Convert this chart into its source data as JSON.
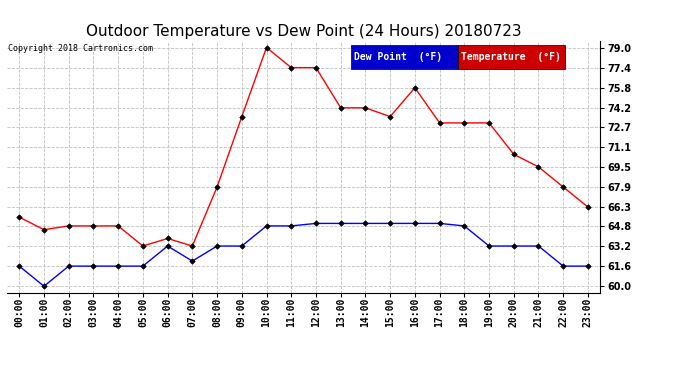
{
  "title": "Outdoor Temperature vs Dew Point (24 Hours) 20180723",
  "copyright": "Copyright 2018 Cartronics.com",
  "hours": [
    "00:00",
    "01:00",
    "02:00",
    "03:00",
    "04:00",
    "05:00",
    "06:00",
    "07:00",
    "08:00",
    "09:00",
    "10:00",
    "11:00",
    "12:00",
    "13:00",
    "14:00",
    "15:00",
    "16:00",
    "17:00",
    "18:00",
    "19:00",
    "20:00",
    "21:00",
    "22:00",
    "23:00"
  ],
  "temperature": [
    65.5,
    64.5,
    64.8,
    64.8,
    64.8,
    63.2,
    63.8,
    63.2,
    67.9,
    73.5,
    79.0,
    77.4,
    77.4,
    74.2,
    74.2,
    73.5,
    75.8,
    73.0,
    73.0,
    73.0,
    70.5,
    69.5,
    67.9,
    66.3
  ],
  "dew_point": [
    61.6,
    60.0,
    61.6,
    61.6,
    61.6,
    61.6,
    63.2,
    62.0,
    63.2,
    63.2,
    64.8,
    64.8,
    65.0,
    65.0,
    65.0,
    65.0,
    65.0,
    65.0,
    64.8,
    63.2,
    63.2,
    63.2,
    61.6,
    61.6
  ],
  "ylim_min": 60.0,
  "ylim_max": 79.0,
  "yticks": [
    60.0,
    61.6,
    63.2,
    64.8,
    66.3,
    67.9,
    69.5,
    71.1,
    72.7,
    74.2,
    75.8,
    77.4,
    79.0
  ],
  "temp_color": "#ff0000",
  "dew_color": "#0000ff",
  "bg_color": "#ffffff",
  "grid_color": "#c0c0c0",
  "title_fontsize": 11,
  "tick_fontsize": 7,
  "copyright_fontsize": 6,
  "legend_dew_bg": "#0000cc",
  "legend_temp_bg": "#cc0000",
  "legend_text_color": "#ffffff"
}
